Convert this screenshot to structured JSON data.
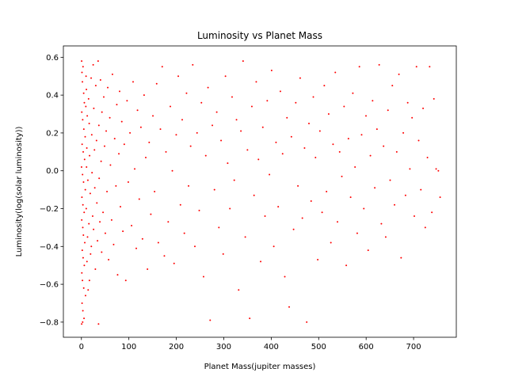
{
  "chart_data": {
    "type": "scatter",
    "title": "Luminosity vs Planet Mass",
    "xlabel": "Planet Mass(jupiter masses)",
    "ylabel": "Luminosity(log(solar luminosity))",
    "xlim": [
      -38,
      790
    ],
    "ylim": [
      -0.88,
      0.66
    ],
    "xticks": [
      0,
      100,
      200,
      300,
      400,
      500,
      600,
      700
    ],
    "yticks": [
      -0.8,
      -0.6,
      -0.4,
      -0.2,
      0.0,
      0.2,
      0.4,
      0.6
    ],
    "xtick_labels": [
      "0",
      "100",
      "200",
      "300",
      "400",
      "500",
      "600",
      "700"
    ],
    "ytick_labels": [
      "−0.8",
      "−0.6",
      "−0.4",
      "−0.2",
      "0.0",
      "0.2",
      "0.4",
      "0.6"
    ],
    "grid": false,
    "legend": "none",
    "marker_color": "#ff0000",
    "series": [
      {
        "points": [
          [
            0.5,
            0.58
          ],
          [
            1.2,
            0.52
          ],
          [
            2.1,
            0.47
          ],
          [
            3.4,
            0.55
          ],
          [
            4.8,
            0.41
          ],
          [
            6.2,
            0.36
          ],
          [
            0.8,
            0.31
          ],
          [
            2.7,
            0.27
          ],
          [
            5.1,
            0.22
          ],
          [
            7.9,
            0.18
          ],
          [
            1.5,
            0.14
          ],
          [
            3.8,
            0.1
          ],
          [
            6.7,
            0.06
          ],
          [
            0.3,
            0.02
          ],
          [
            2.4,
            -0.02
          ],
          [
            4.5,
            -0.06
          ],
          [
            8.2,
            -0.1
          ],
          [
            1.1,
            -0.14
          ],
          [
            3.2,
            -0.18
          ],
          [
            5.8,
            -0.22
          ],
          [
            0.7,
            -0.26
          ],
          [
            2.9,
            -0.3
          ],
          [
            4.2,
            -0.34
          ],
          [
            7.1,
            -0.38
          ],
          [
            1.8,
            -0.42
          ],
          [
            3.6,
            -0.46
          ],
          [
            6.1,
            -0.5
          ],
          [
            0.9,
            -0.54
          ],
          [
            2.2,
            -0.58
          ],
          [
            4.9,
            -0.62
          ],
          [
            8.7,
            -0.66
          ],
          [
            1.4,
            -0.7
          ],
          [
            3.1,
            -0.74
          ],
          [
            5.5,
            -0.78
          ],
          [
            0.6,
            -0.81
          ],
          [
            2.6,
            -0.8
          ],
          [
            9.8,
            0.5
          ],
          [
            10.5,
            0.43
          ],
          [
            12.3,
            0.29
          ],
          [
            11.4,
            0.12
          ],
          [
            13.6,
            -0.05
          ],
          [
            10.2,
            -0.2
          ],
          [
            12.9,
            -0.35
          ],
          [
            11.7,
            -0.48
          ],
          [
            14.2,
            -0.63
          ],
          [
            9.3,
            0.34
          ],
          [
            10.8,
            0.02
          ],
          [
            15.1,
            0.38
          ],
          [
            16.4,
            0.25
          ],
          [
            17.2,
            0.08
          ],
          [
            18.6,
            -0.12
          ],
          [
            15.8,
            -0.28
          ],
          [
            19.3,
            -0.44
          ],
          [
            16.9,
            -0.58
          ],
          [
            20.5,
            0.49
          ],
          [
            21.8,
            0.19
          ],
          [
            22.4,
            -0.01
          ],
          [
            23.7,
            -0.24
          ],
          [
            20.9,
            -0.4
          ],
          [
            24.8,
            0.56
          ],
          [
            26.1,
            0.33
          ],
          [
            27.5,
            0.11
          ],
          [
            28.2,
            -0.09
          ],
          [
            25.6,
            -0.31
          ],
          [
            29.4,
            -0.52
          ],
          [
            30.3,
            0.45
          ],
          [
            31.8,
            0.16
          ],
          [
            32.6,
            -0.17
          ],
          [
            33.9,
            -0.37
          ],
          [
            35.2,
            0.58
          ],
          [
            36.8,
            0.24
          ],
          [
            37.4,
            -0.04
          ],
          [
            38.9,
            -0.27
          ],
          [
            36.1,
            -0.81
          ],
          [
            40.2,
            0.48
          ],
          [
            41.5,
            0.05
          ],
          [
            42.7,
            -0.43
          ],
          [
            43.3,
            0.31
          ],
          [
            45.6,
            -0.22
          ],
          [
            47.1,
            0.39
          ],
          [
            48.8,
            0.13
          ],
          [
            50.4,
            -0.33
          ],
          [
            52.2,
            0.21
          ],
          [
            53.9,
            -0.11
          ],
          [
            55.5,
            0.44
          ],
          [
            57.3,
            -0.47
          ],
          [
            59.8,
            0.28
          ],
          [
            61.2,
            0.03
          ],
          [
            63.7,
            -0.26
          ],
          [
            65.4,
            0.51
          ],
          [
            67.9,
            -0.39
          ],
          [
            70.1,
            0.17
          ],
          [
            72.8,
            -0.08
          ],
          [
            74.6,
            0.35
          ],
          [
            76.3,
            -0.55
          ],
          [
            78.9,
            0.09
          ],
          [
            80.5,
            0.42
          ],
          [
            82.2,
            -0.19
          ],
          [
            85.1,
            0.26
          ],
          [
            87.4,
            -0.32
          ],
          [
            90.3,
            0.14
          ],
          [
            93.5,
            -0.58
          ],
          [
            96.2,
            0.37
          ],
          [
            98.8,
            -0.06
          ],
          [
            102.4,
            0.2
          ],
          [
            105.7,
            -0.29
          ],
          [
            108.9,
            0.47
          ],
          [
            112.3,
            0.01
          ],
          [
            115.6,
            -0.41
          ],
          [
            118.2,
            0.32
          ],
          [
            121.9,
            -0.15
          ],
          [
            125.4,
            0.23
          ],
          [
            128.7,
            -0.36
          ],
          [
            132.1,
            0.4
          ],
          [
            135.6,
            0.07
          ],
          [
            139.2,
            -0.52
          ],
          [
            142.8,
            0.15
          ],
          [
            146.3,
            -0.23
          ],
          [
            150.7,
            0.29
          ],
          [
            154.2,
            -0.11
          ],
          [
            158.6,
            0.46
          ],
          [
            162.1,
            -0.38
          ],
          [
            166.5,
            0.22
          ],
          [
            170.3,
            0.55
          ],
          [
            174.8,
            -0.45
          ],
          [
            178.2,
            0.1
          ],
          [
            182.9,
            -0.27
          ],
          [
            187.4,
            0.34
          ],
          [
            191.6,
            0.0
          ],
          [
            195.3,
            -0.49
          ],
          [
            199.8,
            0.19
          ],
          [
            204.1,
            0.5
          ],
          [
            208.7,
            -0.18
          ],
          [
            212.4,
            0.27
          ],
          [
            216.9,
            -0.33
          ],
          [
            221.5,
            0.41
          ],
          [
            225.8,
            -0.08
          ],
          [
            230.2,
            0.13
          ],
          [
            234.6,
            0.56
          ],
          [
            239.1,
            -0.4
          ],
          [
            243.7,
            0.2
          ],
          [
            248.3,
            -0.21
          ],
          [
            252.9,
            0.36
          ],
          [
            257.4,
            -0.56
          ],
          [
            262.1,
            0.08
          ],
          [
            266.8,
            0.44
          ],
          [
            271.3,
            -0.79
          ],
          [
            275.9,
            0.24
          ],
          [
            280.4,
            -0.1
          ],
          [
            285.2,
            0.31
          ],
          [
            289.7,
            -0.3
          ],
          [
            294.3,
            0.16
          ],
          [
            298.8,
            -0.44
          ],
          [
            303.6,
            0.5
          ],
          [
            308.2,
            0.04
          ],
          [
            312.9,
            -0.2
          ],
          [
            317.5,
            0.39
          ],
          [
            322.1,
            -0.05
          ],
          [
            326.8,
            0.27
          ],
          [
            331.4,
            -0.63
          ],
          [
            336.1,
            0.21
          ],
          [
            340.7,
            0.58
          ],
          [
            345.3,
            -0.35
          ],
          [
            349.9,
            0.11
          ],
          [
            354.6,
            -0.78
          ],
          [
            359.2,
            0.34
          ],
          [
            363.8,
            -0.13
          ],
          [
            368.4,
            0.47
          ],
          [
            373.1,
            0.06
          ],
          [
            377.7,
            -0.48
          ],
          [
            382.3,
            0.23
          ],
          [
            386.9,
            -0.24
          ],
          [
            391.6,
            0.37
          ],
          [
            396.2,
            -0.02
          ],
          [
            400.8,
            0.53
          ],
          [
            405.4,
            -0.4
          ],
          [
            410.1,
            0.15
          ],
          [
            414.7,
            -0.19
          ],
          [
            419.3,
            0.42
          ],
          [
            424.0,
            0.09
          ],
          [
            428.6,
            -0.56
          ],
          [
            433.2,
            0.28
          ],
          [
            437.8,
            -0.72
          ],
          [
            442.5,
            0.18
          ],
          [
            447.1,
            -0.31
          ],
          [
            451.7,
            0.36
          ],
          [
            456.3,
            -0.08
          ],
          [
            461.0,
            0.49
          ],
          [
            465.6,
            -0.25
          ],
          [
            470.2,
            0.12
          ],
          [
            474.8,
            -0.8
          ],
          [
            479.5,
            0.25
          ],
          [
            484.1,
            -0.16
          ],
          [
            488.7,
            0.39
          ],
          [
            493.3,
            0.07
          ],
          [
            498.0,
            -0.47
          ],
          [
            502.6,
            0.21
          ],
          [
            507.2,
            -0.22
          ],
          [
            511.8,
            0.45
          ],
          [
            516.5,
            -0.11
          ],
          [
            521.1,
            0.3
          ],
          [
            525.7,
            -0.38
          ],
          [
            530.3,
            0.14
          ],
          [
            535.0,
            0.52
          ],
          [
            539.6,
            -0.27
          ],
          [
            544.2,
            0.1
          ],
          [
            548.8,
            -0.03
          ],
          [
            553.5,
            0.34
          ],
          [
            558.1,
            -0.5
          ],
          [
            562.7,
            0.17
          ],
          [
            567.3,
            -0.14
          ],
          [
            572.0,
            0.41
          ],
          [
            576.6,
            0.02
          ],
          [
            581.2,
            -0.33
          ],
          [
            585.8,
            0.55
          ],
          [
            590.5,
            0.19
          ],
          [
            595.1,
            -0.2
          ],
          [
            599.7,
            0.29
          ],
          [
            604.3,
            -0.42
          ],
          [
            609.0,
            0.08
          ],
          [
            613.6,
            0.37
          ],
          [
            618.2,
            -0.09
          ],
          [
            622.8,
            0.22
          ],
          [
            627.5,
            0.56
          ],
          [
            632.1,
            -0.28
          ],
          [
            636.7,
            0.13
          ],
          [
            641.3,
            -0.35
          ],
          [
            646.0,
            0.32
          ],
          [
            650.6,
            -0.05
          ],
          [
            655.2,
            0.45
          ],
          [
            659.8,
            -0.18
          ],
          [
            664.5,
            0.1
          ],
          [
            669.1,
            0.51
          ],
          [
            673.7,
            -0.46
          ],
          [
            678.3,
            0.2
          ],
          [
            683.0,
            -0.13
          ],
          [
            687.6,
            0.36
          ],
          [
            692.2,
            0.01
          ],
          [
            696.8,
            0.28
          ],
          [
            701.5,
            -0.24
          ],
          [
            706.1,
            0.55
          ],
          [
            710.7,
            0.16
          ],
          [
            715.3,
            -0.1
          ],
          [
            720.0,
            0.33
          ],
          [
            724.6,
            -0.3
          ],
          [
            729.2,
            0.07
          ],
          [
            733.8,
            0.55
          ],
          [
            738.5,
            -0.22
          ],
          [
            742.8,
            0.38
          ],
          [
            747.5,
            0.01
          ],
          [
            752.2,
            0.0
          ],
          [
            755.9,
            -0.14
          ]
        ]
      }
    ]
  }
}
